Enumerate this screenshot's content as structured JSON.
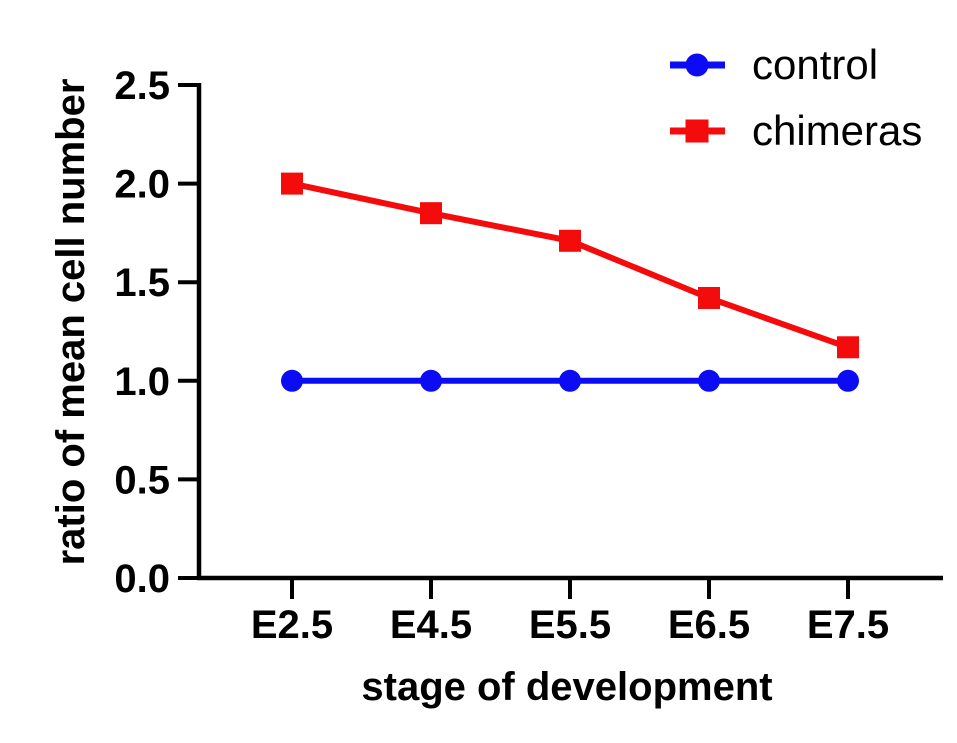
{
  "chart_data": {
    "type": "line",
    "title": "",
    "xlabel": "stage of development",
    "ylabel": "ratio of mean cell number",
    "categories": [
      "E2.5",
      "E4.5",
      "E5.5",
      "E6.5",
      "E7.5"
    ],
    "y_tick_labels": [
      "0.0",
      "0.5",
      "1.0",
      "1.5",
      "2.0",
      "2.5"
    ],
    "ylim": [
      0,
      2.5
    ],
    "grid": false,
    "legend_position": "top-right",
    "series": [
      {
        "name": "control",
        "marker": "circle",
        "color": "#0b0bf4",
        "values": [
          1.0,
          1.0,
          1.0,
          1.0,
          1.0
        ]
      },
      {
        "name": "chimeras",
        "marker": "square",
        "color": "#f40b0b",
        "values": [
          2.0,
          1.85,
          1.71,
          1.42,
          1.17
        ]
      }
    ],
    "axis_color": "#000000",
    "background_color": "#ffffff"
  }
}
